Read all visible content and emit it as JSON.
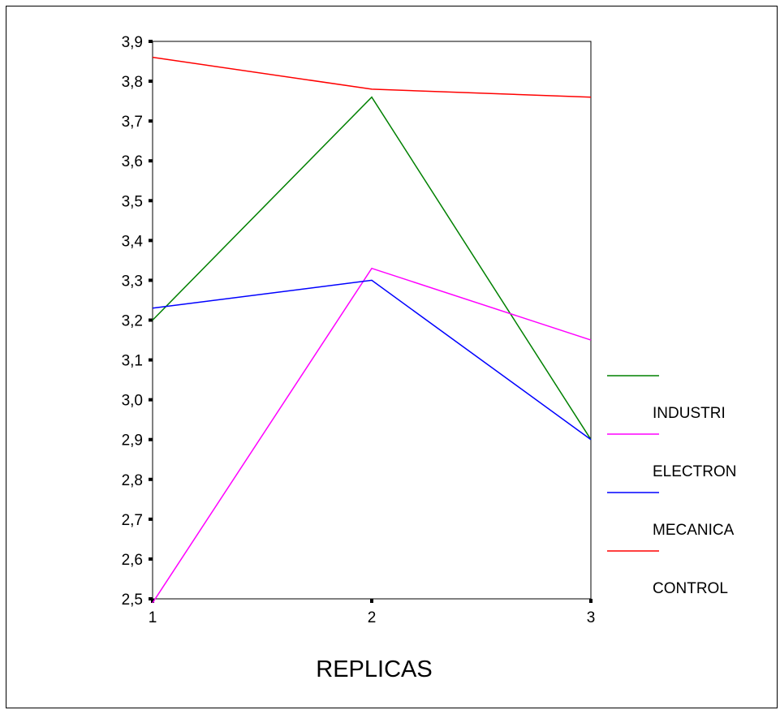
{
  "chart_data": {
    "type": "line",
    "x": [
      1,
      2,
      3
    ],
    "x_ticks": [
      "1",
      "2",
      "3"
    ],
    "y_ticks": [
      "2,5",
      "2,6",
      "2,7",
      "2,8",
      "2,9",
      "3,0",
      "3,1",
      "3,2",
      "3,3",
      "3,4",
      "3,5",
      "3,6",
      "3,7",
      "3,8",
      "3,9"
    ],
    "xlabel": "REPLICAS",
    "ylabel": "",
    "ylim": [
      2.5,
      3.9
    ],
    "xlim": [
      1,
      3
    ],
    "grid": false,
    "legend_position": "right",
    "series": [
      {
        "name": "INDUSTRI",
        "color": "#008000",
        "values": [
          3.2,
          3.76,
          2.9
        ]
      },
      {
        "name": "ELECTRON",
        "color": "#ff00ff",
        "values": [
          2.49,
          3.33,
          3.15
        ]
      },
      {
        "name": "MECANICA",
        "color": "#0000ff",
        "values": [
          3.23,
          3.3,
          2.9
        ]
      },
      {
        "name": "CONTROL",
        "color": "#ff0000",
        "values": [
          3.86,
          3.78,
          3.76
        ]
      }
    ]
  }
}
